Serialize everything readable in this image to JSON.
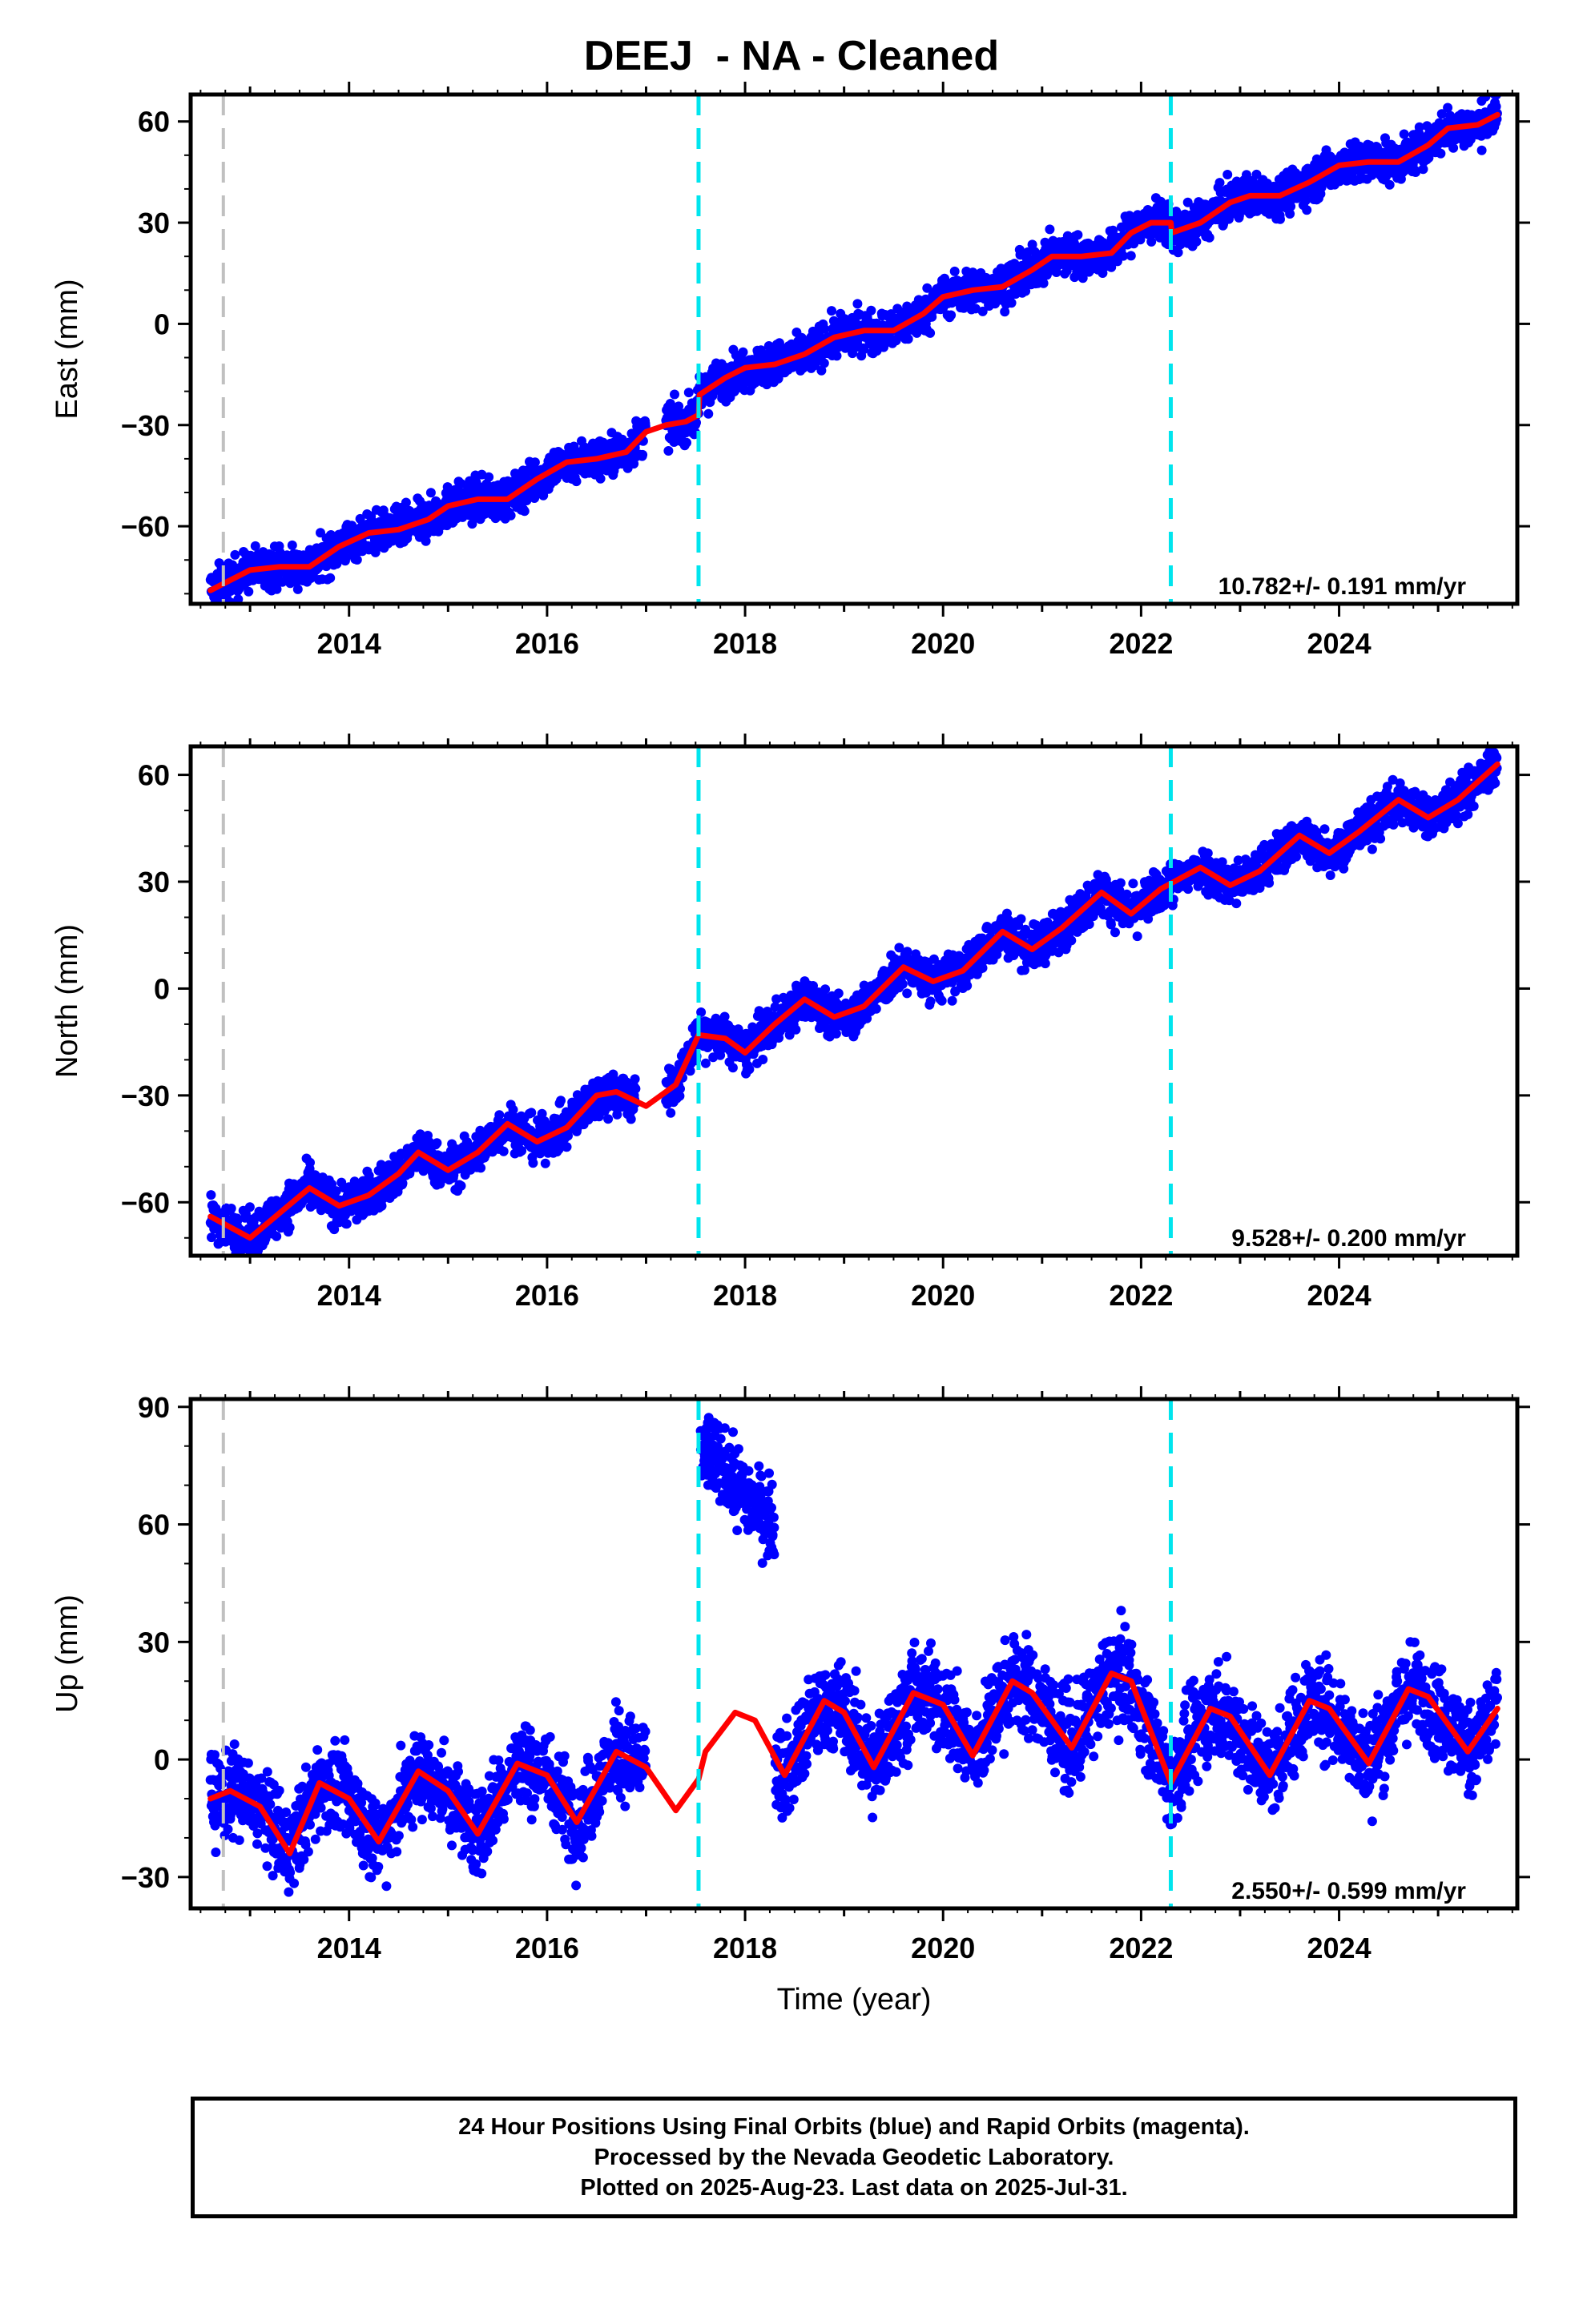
{
  "title": "DEEJ  - NA - Cleaned",
  "colors": {
    "final_orbit_points": "#0000ff",
    "model_fit": "#ff0000",
    "equipment_change": "#00e5ee",
    "other_event": "#c0c0c0",
    "frame": "#000000"
  },
  "chart_data": [
    {
      "type": "scatter",
      "ylabel": "East (mm)",
      "xlim": [
        2012.4,
        2025.8
      ],
      "ylim": [
        -83,
        68
      ],
      "yticks": [
        -60,
        -30,
        0,
        30,
        60
      ],
      "xticks": [
        2014,
        2016,
        2018,
        2020,
        2022,
        2024
      ],
      "rate_label": "10.782+/- 0.191 mm/yr",
      "event_lines": [
        {
          "x": 2012.73,
          "kind": "other"
        },
        {
          "x": 2017.53,
          "kind": "equipment"
        },
        {
          "x": 2022.3,
          "kind": "equipment"
        }
      ],
      "model_fit": [
        [
          2012.6,
          -79
        ],
        [
          2012.8,
          -76
        ],
        [
          2013.0,
          -73
        ],
        [
          2013.3,
          -72
        ],
        [
          2013.6,
          -72
        ],
        [
          2013.9,
          -66
        ],
        [
          2014.2,
          -62
        ],
        [
          2014.5,
          -61
        ],
        [
          2014.8,
          -58
        ],
        [
          2015.0,
          -54
        ],
        [
          2015.3,
          -52
        ],
        [
          2015.6,
          -52
        ],
        [
          2015.9,
          -46
        ],
        [
          2016.2,
          -41
        ],
        [
          2016.5,
          -40
        ],
        [
          2016.8,
          -38
        ],
        [
          2017.0,
          -32
        ],
        [
          2017.2,
          -30
        ],
        [
          2017.4,
          -29
        ],
        [
          2017.53,
          -27
        ],
        [
          2017.54,
          -21
        ],
        [
          2017.8,
          -16
        ],
        [
          2018.0,
          -13
        ],
        [
          2018.3,
          -12
        ],
        [
          2018.6,
          -9
        ],
        [
          2018.9,
          -4
        ],
        [
          2019.2,
          -2
        ],
        [
          2019.5,
          -2
        ],
        [
          2019.8,
          3
        ],
        [
          2020.0,
          8
        ],
        [
          2020.3,
          10
        ],
        [
          2020.6,
          11
        ],
        [
          2020.9,
          16
        ],
        [
          2021.1,
          20
        ],
        [
          2021.4,
          20
        ],
        [
          2021.7,
          21
        ],
        [
          2021.9,
          27
        ],
        [
          2022.1,
          30
        ],
        [
          2022.3,
          30
        ],
        [
          2022.31,
          27
        ],
        [
          2022.6,
          30
        ],
        [
          2022.9,
          36
        ],
        [
          2023.1,
          38
        ],
        [
          2023.4,
          38
        ],
        [
          2023.7,
          42
        ],
        [
          2024.0,
          47
        ],
        [
          2024.3,
          48
        ],
        [
          2024.6,
          48
        ],
        [
          2024.9,
          53
        ],
        [
          2025.1,
          58
        ],
        [
          2025.4,
          59
        ],
        [
          2025.6,
          62
        ]
      ],
      "point_segments": [
        {
          "x0": 2012.6,
          "x1": 2017.0,
          "noise": 3.0
        },
        {
          "x0": 2017.2,
          "x1": 2025.6,
          "noise": 3.0
        }
      ]
    },
    {
      "type": "scatter",
      "ylabel": "North (mm)",
      "xlim": [
        2012.4,
        2025.8
      ],
      "ylim": [
        -75,
        68
      ],
      "yticks": [
        -60,
        -30,
        0,
        30,
        60
      ],
      "xticks": [
        2014,
        2016,
        2018,
        2020,
        2022,
        2024
      ],
      "rate_label": "9.528+/- 0.200 mm/yr",
      "event_lines": [
        {
          "x": 2012.73,
          "kind": "other"
        },
        {
          "x": 2017.53,
          "kind": "equipment"
        },
        {
          "x": 2022.3,
          "kind": "equipment"
        }
      ],
      "model_fit": [
        [
          2012.6,
          -64
        ],
        [
          2012.8,
          -67
        ],
        [
          2013.0,
          -70
        ],
        [
          2013.3,
          -63
        ],
        [
          2013.6,
          -56
        ],
        [
          2013.9,
          -61
        ],
        [
          2014.2,
          -58
        ],
        [
          2014.5,
          -52
        ],
        [
          2014.7,
          -46
        ],
        [
          2015.0,
          -51
        ],
        [
          2015.3,
          -46
        ],
        [
          2015.6,
          -38
        ],
        [
          2015.9,
          -43
        ],
        [
          2016.2,
          -39
        ],
        [
          2016.5,
          -30
        ],
        [
          2016.7,
          -29
        ],
        [
          2017.0,
          -33
        ],
        [
          2017.3,
          -27
        ],
        [
          2017.53,
          -13
        ],
        [
          2017.8,
          -14
        ],
        [
          2018.0,
          -18
        ],
        [
          2018.3,
          -10
        ],
        [
          2018.6,
          -3
        ],
        [
          2018.9,
          -8
        ],
        [
          2019.2,
          -5
        ],
        [
          2019.6,
          6
        ],
        [
          2019.9,
          2
        ],
        [
          2020.2,
          5
        ],
        [
          2020.6,
          16
        ],
        [
          2020.9,
          11
        ],
        [
          2021.2,
          17
        ],
        [
          2021.6,
          27
        ],
        [
          2021.9,
          21
        ],
        [
          2022.2,
          28
        ],
        [
          2022.6,
          34
        ],
        [
          2022.9,
          29
        ],
        [
          2023.2,
          33
        ],
        [
          2023.6,
          43
        ],
        [
          2023.9,
          38
        ],
        [
          2024.2,
          44
        ],
        [
          2024.6,
          53
        ],
        [
          2024.9,
          48
        ],
        [
          2025.2,
          53
        ],
        [
          2025.6,
          63
        ]
      ],
      "point_segments": [
        {
          "x0": 2012.6,
          "x1": 2016.9,
          "noise": 3.0
        },
        {
          "x0": 2017.2,
          "x1": 2025.6,
          "noise": 3.0
        }
      ]
    },
    {
      "type": "scatter",
      "ylabel": "Up (mm)",
      "xlabel": "Time (year)",
      "xlim": [
        2012.4,
        2025.8
      ],
      "ylim": [
        -38,
        92
      ],
      "yticks": [
        -30,
        0,
        30,
        60,
        90
      ],
      "xticks": [
        2014,
        2016,
        2018,
        2020,
        2022,
        2024
      ],
      "rate_label": "2.550+/- 0.599 mm/yr",
      "event_lines": [
        {
          "x": 2012.73,
          "kind": "other"
        },
        {
          "x": 2017.53,
          "kind": "equipment"
        },
        {
          "x": 2022.3,
          "kind": "equipment"
        }
      ],
      "model_fit": [
        [
          2012.6,
          -10
        ],
        [
          2012.8,
          -8
        ],
        [
          2013.1,
          -12
        ],
        [
          2013.4,
          -24
        ],
        [
          2013.7,
          -6
        ],
        [
          2014.0,
          -10
        ],
        [
          2014.3,
          -21
        ],
        [
          2014.7,
          -3
        ],
        [
          2015.0,
          -8
        ],
        [
          2015.3,
          -19
        ],
        [
          2015.7,
          -1
        ],
        [
          2016.0,
          -4
        ],
        [
          2016.3,
          -16
        ],
        [
          2016.7,
          2
        ],
        [
          2017.0,
          -2
        ],
        [
          2017.3,
          -13
        ],
        [
          2017.53,
          -5
        ],
        [
          2017.6,
          2
        ],
        [
          2017.9,
          12
        ],
        [
          2018.1,
          10
        ],
        [
          2018.4,
          -4
        ],
        [
          2018.8,
          15
        ],
        [
          2019.0,
          12
        ],
        [
          2019.3,
          -2
        ],
        [
          2019.7,
          17
        ],
        [
          2020.0,
          14
        ],
        [
          2020.3,
          1
        ],
        [
          2020.7,
          20
        ],
        [
          2020.9,
          17
        ],
        [
          2021.3,
          3
        ],
        [
          2021.7,
          22
        ],
        [
          2021.9,
          20
        ],
        [
          2022.3,
          -6
        ],
        [
          2022.7,
          13
        ],
        [
          2022.9,
          11
        ],
        [
          2023.3,
          -4
        ],
        [
          2023.7,
          15
        ],
        [
          2023.9,
          13
        ],
        [
          2024.3,
          -1
        ],
        [
          2024.7,
          18
        ],
        [
          2024.9,
          16
        ],
        [
          2025.3,
          2
        ],
        [
          2025.6,
          13
        ]
      ],
      "point_segments": [
        {
          "x0": 2012.6,
          "x1": 2017.0,
          "noise": 5.5
        },
        {
          "x0": 2017.55,
          "x1": 2018.3,
          "offset": 70,
          "noise": 5.5
        },
        {
          "x0": 2018.3,
          "x1": 2025.6,
          "noise": 6.0
        }
      ]
    }
  ],
  "footer": {
    "line1": "24 Hour Positions Using Final Orbits (blue) and Rapid Orbits (magenta).",
    "line2": "Processed by the Nevada Geodetic Laboratory.",
    "line3": "Plotted on 2025-Aug-23. Last data on 2025-Jul-31."
  }
}
